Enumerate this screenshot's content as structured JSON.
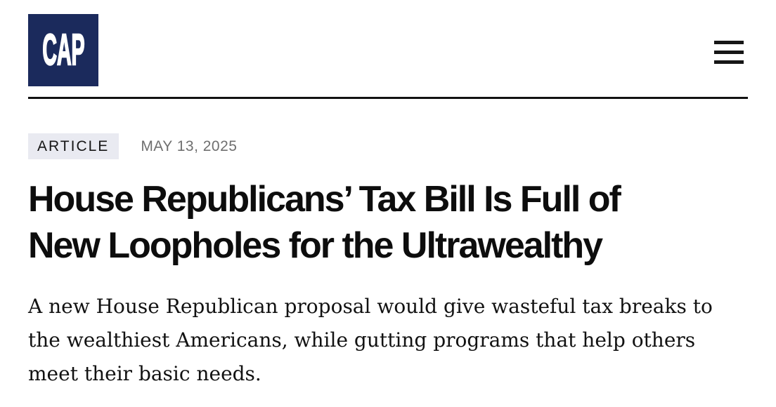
{
  "theme": {
    "logo_bg": "#1b2a5c",
    "logo_fg": "#ffffff",
    "badge_bg": "#e9eaf1",
    "badge_fg": "#161616",
    "date_color": "#6f6f6f",
    "title_color": "#0d0d0d",
    "divider_color": "#121212"
  },
  "header": {
    "logo_text": "CAP"
  },
  "article": {
    "badge_label": "ARTICLE",
    "date": "MAY 13, 2025",
    "title_lines": [
      "House Republicans’ Tax Bill Is Full of",
      "New Loopholes for the Ultrawealthy"
    ],
    "title_full": "House Republicans’ Tax Bill Is Full of New Loopholes for the Ultrawealthy",
    "dek": "A new House Republican proposal would give wasteful tax breaks to the wealthiest Americans, while gutting programs that help others meet their basic needs."
  }
}
